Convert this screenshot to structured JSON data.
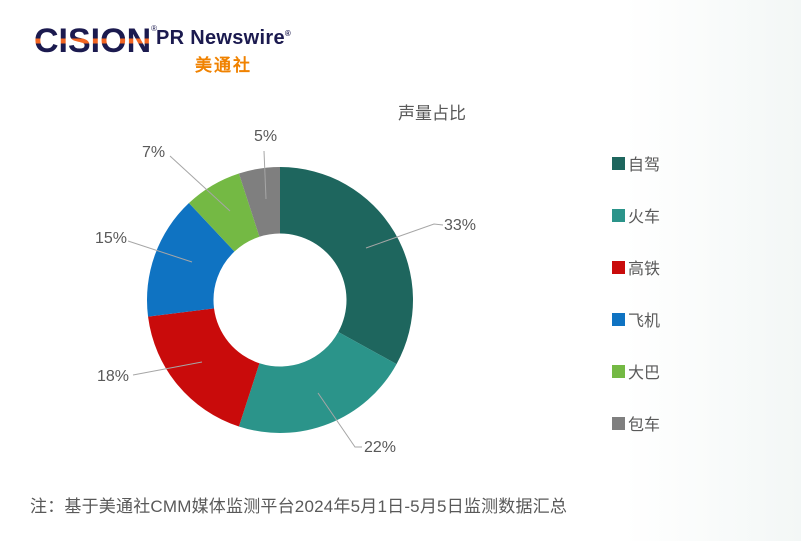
{
  "header": {
    "brand_cision": "CISION",
    "cision_mark": "®",
    "brand_pr": "PR Newswire",
    "pr_mark": "®",
    "brand_cn": "美通社",
    "navy": "#1B1A4F",
    "orange": "#F26522",
    "cn_orange": "#F08200"
  },
  "chart_data": {
    "type": "pie",
    "subtype": "donut",
    "title": "声量占比",
    "legend_position": "right",
    "grid": false,
    "donut_hole_ratio": 0.5,
    "start_angle_deg": 0,
    "direction": "clockwise",
    "categories": [
      "自驾",
      "火车",
      "高铁",
      "飞机",
      "大巴",
      "包车"
    ],
    "values": [
      33,
      22,
      18,
      15,
      7,
      5
    ],
    "labels": [
      "33%",
      "22%",
      "18%",
      "15%",
      "7%",
      "5%"
    ],
    "colors": [
      "#1E665E",
      "#2B948A",
      "#C90B0B",
      "#0F73C2",
      "#74B944",
      "#7F7F7F"
    ],
    "unit": "%",
    "leader_line_color": "#A6A6A6"
  },
  "footnote": "注：基于美通社CMM媒体监测平台2024年5月1日-5月5日监测数据汇总"
}
